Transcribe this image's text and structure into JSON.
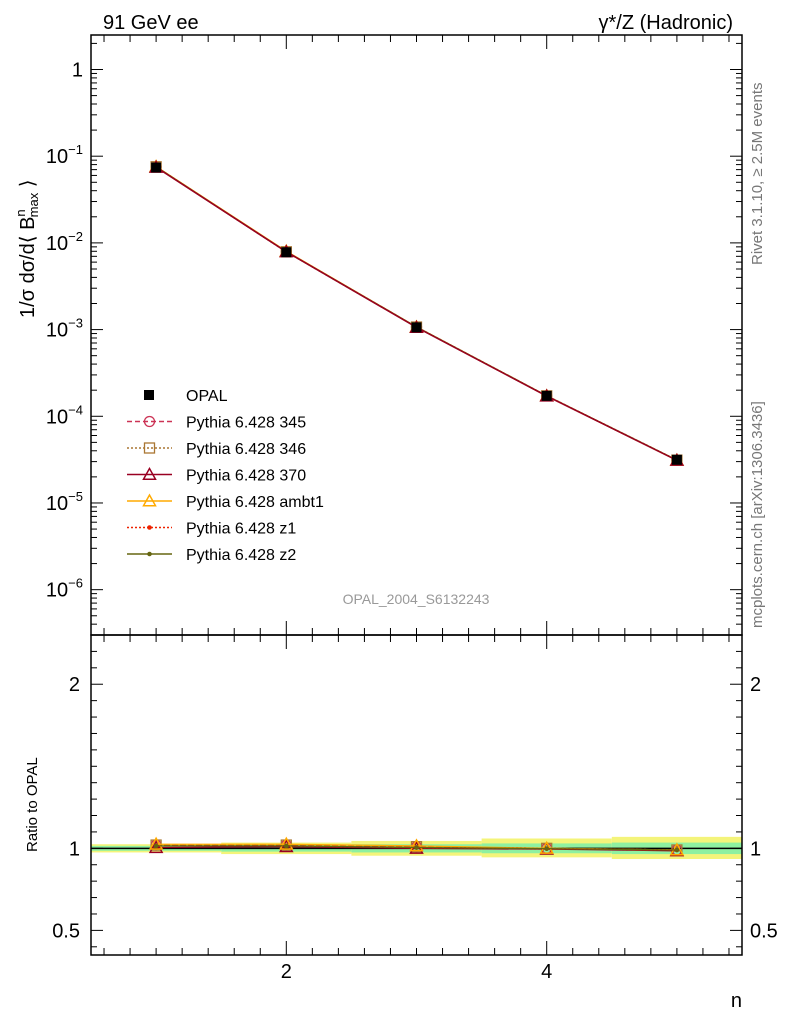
{
  "header": {
    "left": "91 GeV ee",
    "right": "γ*/Z (Hadronic)"
  },
  "side_labels": {
    "rivet": "Rivet 3.1.10, ≥ 2.5M events",
    "mcplots": "mcplots.cern.ch [arXiv:1306.3436]"
  },
  "watermark": "OPAL_2004_S6132243",
  "chart_data": [
    {
      "type": "line",
      "panel": "main",
      "ylabel": "1/σ dσ/d⟨ B^n_max ⟩",
      "yscale": "log",
      "ylim": [
        3e-07,
        2.5
      ],
      "xlim": [
        0.5,
        5.5
      ],
      "y_ticks": [
        {
          "value": 1,
          "base": "1",
          "exp": ""
        },
        {
          "value": 0.1,
          "base": "10",
          "exp": "−1"
        },
        {
          "value": 0.01,
          "base": "10",
          "exp": "−2"
        },
        {
          "value": 0.001,
          "base": "10",
          "exp": "−3"
        },
        {
          "value": 0.0001,
          "base": "10",
          "exp": "−4"
        },
        {
          "value": 1e-05,
          "base": "10",
          "exp": "−5"
        },
        {
          "value": 1e-06,
          "base": "10",
          "exp": "−6"
        }
      ],
      "x": [
        1,
        2,
        3,
        4,
        5
      ],
      "series": [
        {
          "name": "OPAL",
          "color": "#000000",
          "marker": "square",
          "dash": "",
          "values": [
            0.074,
            0.0078,
            0.00106,
            0.000172,
            3.15e-05
          ]
        },
        {
          "name": "Pythia 6.428 345",
          "color": "#cc3355",
          "marker": "circle",
          "dash": "5,3",
          "values": [
            0.0755,
            0.0079,
            0.00107,
            0.000172,
            3.12e-05
          ]
        },
        {
          "name": "Pythia 6.428 346",
          "color": "#aa7733",
          "marker": "square-open",
          "dash": "2,2",
          "values": [
            0.0755,
            0.0079,
            0.00107,
            0.000172,
            3.12e-05
          ]
        },
        {
          "name": "Pythia 6.428 370",
          "color": "#990022",
          "marker": "triangle",
          "dash": "",
          "values": [
            0.0745,
            0.0079,
            0.00106,
            0.000171,
            3.1e-05
          ]
        },
        {
          "name": "Pythia 6.428 ambt1",
          "color": "#ffaa00",
          "marker": "triangle",
          "dash": "",
          "values": [
            0.0757,
            0.008,
            0.00107,
            0.000172,
            3.11e-05
          ]
        },
        {
          "name": "Pythia 6.428 z1",
          "color": "#ee2200",
          "marker": "dot",
          "dash": "2,2",
          "values": [
            0.0752,
            0.0079,
            0.00107,
            0.000172,
            3.12e-05
          ]
        },
        {
          "name": "Pythia 6.428 z2",
          "color": "#666611",
          "marker": "dot",
          "dash": "",
          "values": [
            0.0752,
            0.0079,
            0.00107,
            0.000172,
            3.12e-05
          ]
        }
      ]
    },
    {
      "type": "line",
      "panel": "ratio",
      "ylabel": "Ratio to OPAL",
      "xlabel": "n",
      "ylim": [
        0.35,
        2.3
      ],
      "xlim": [
        0.5,
        5.5
      ],
      "y_ticks": [
        {
          "value": 0.5,
          "label": "0.5"
        },
        {
          "value": 1,
          "label": "1"
        },
        {
          "value": 2,
          "label": "2"
        }
      ],
      "x_ticks": [
        2,
        4
      ],
      "bands": {
        "outer_color": "#f4f47a",
        "inner_color": "#8ef0a0",
        "bins": [
          {
            "x0": 0.5,
            "x1": 1.5,
            "outer": [
              0.975,
              1.025
            ],
            "inner": [
              0.985,
              1.015
            ]
          },
          {
            "x0": 1.5,
            "x1": 2.5,
            "outer": [
              0.965,
              1.035
            ],
            "inner": [
              0.98,
              1.02
            ]
          },
          {
            "x0": 2.5,
            "x1": 3.5,
            "outer": [
              0.955,
              1.045
            ],
            "inner": [
              0.975,
              1.025
            ]
          },
          {
            "x0": 3.5,
            "x1": 4.5,
            "outer": [
              0.945,
              1.06
            ],
            "inner": [
              0.97,
              1.03
            ]
          },
          {
            "x0": 4.5,
            "x1": 5.5,
            "outer": [
              0.935,
              1.07
            ],
            "inner": [
              0.965,
              1.035
            ]
          }
        ]
      },
      "x": [
        1,
        2,
        3,
        4,
        5
      ],
      "series": [
        {
          "name": "Pythia 6.428 345",
          "color": "#cc3355",
          "marker": "circle",
          "dash": "5,3",
          "values": [
            1.02,
            1.02,
            1.01,
            1.0,
            0.99
          ]
        },
        {
          "name": "Pythia 6.428 346",
          "color": "#aa7733",
          "marker": "square-open",
          "dash": "2,2",
          "values": [
            1.02,
            1.02,
            1.01,
            1.0,
            0.99
          ]
        },
        {
          "name": "Pythia 6.428 370",
          "color": "#990022",
          "marker": "triangle",
          "dash": "",
          "values": [
            1.005,
            1.01,
            1.0,
            0.995,
            0.985
          ]
        },
        {
          "name": "Pythia 6.428 ambt1",
          "color": "#ffaa00",
          "marker": "triangle",
          "dash": "",
          "values": [
            1.025,
            1.025,
            1.015,
            1.0,
            0.99
          ]
        },
        {
          "name": "Pythia 6.428 z1",
          "color": "#ee2200",
          "marker": "dot",
          "dash": "2,2",
          "values": [
            1.015,
            1.015,
            1.005,
            0.998,
            0.99
          ]
        },
        {
          "name": "Pythia 6.428 z2",
          "color": "#666611",
          "marker": "dot",
          "dash": "",
          "values": [
            1.015,
            1.015,
            1.005,
            0.998,
            0.99
          ]
        }
      ]
    }
  ]
}
